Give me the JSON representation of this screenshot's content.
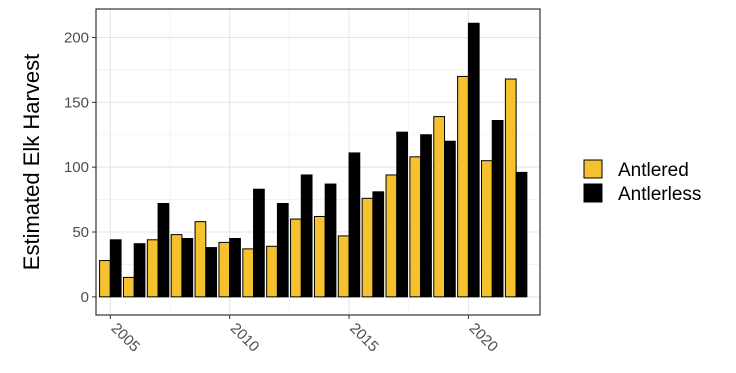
{
  "chart_data": {
    "type": "bar",
    "title": "",
    "xlabel": "",
    "ylabel": "Estimated Elk Harvest",
    "x": [
      2005,
      2006,
      2007,
      2008,
      2009,
      2010,
      2011,
      2012,
      2013,
      2014,
      2015,
      2016,
      2017,
      2018,
      2019,
      2020,
      2021,
      2022
    ],
    "xticks": [
      "2005",
      "2010",
      "2015",
      "2020"
    ],
    "yticks": [
      "0",
      "50",
      "100",
      "150",
      "200"
    ],
    "ylim": [
      -14,
      222
    ],
    "xlim": [
      2004.4,
      2023.0
    ],
    "grid": true,
    "legend_position": "right",
    "series": [
      {
        "name": "Antlered",
        "color": "#F6C12E",
        "values": [
          28,
          15,
          44,
          48,
          58,
          42,
          37,
          39,
          60,
          62,
          47,
          76,
          94,
          108,
          139,
          170,
          105,
          168
        ]
      },
      {
        "name": "Antlerless",
        "color": "#000000",
        "values": [
          44,
          41,
          72,
          45,
          38,
          45,
          83,
          72,
          94,
          87,
          111,
          81,
          127,
          125,
          120,
          211,
          136,
          96
        ]
      }
    ]
  }
}
